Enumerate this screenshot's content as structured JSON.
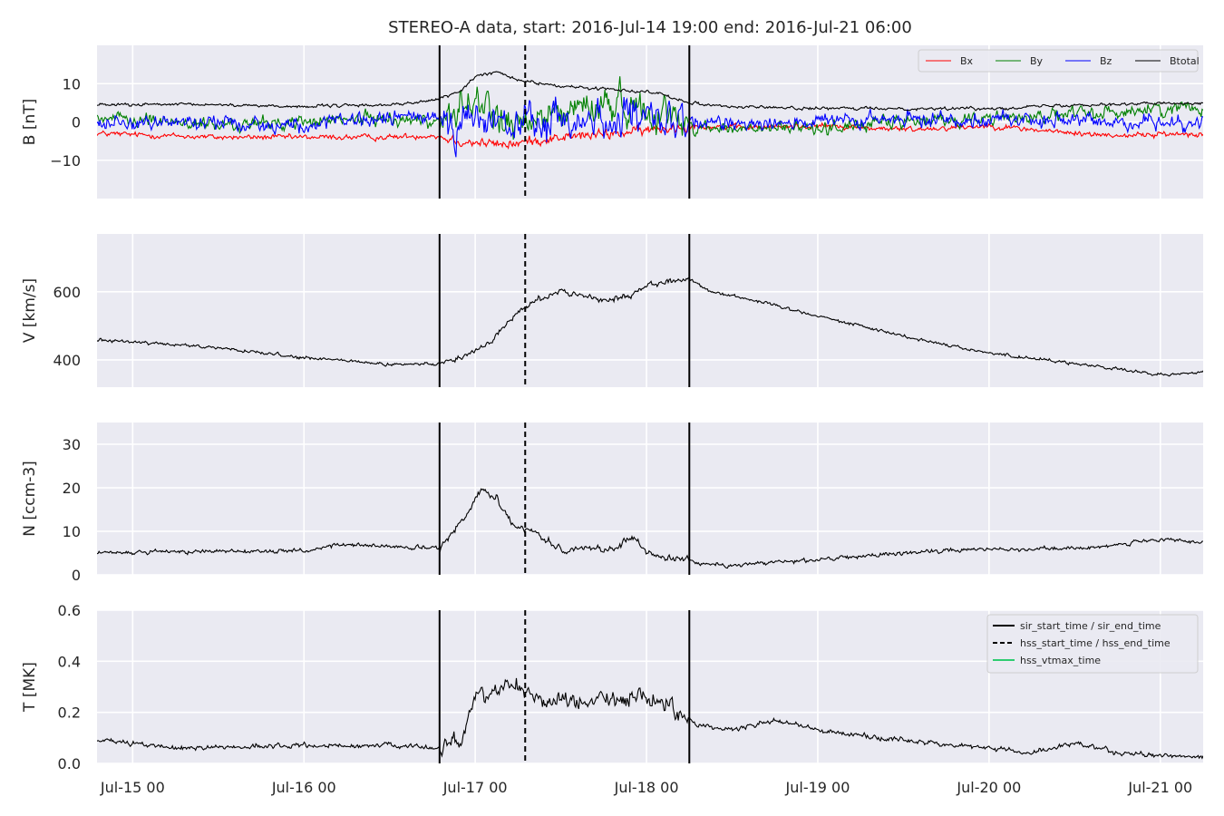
{
  "figure": {
    "title": "STEREO-A data, start: 2016-Jul-14 19:00  end: 2016-Jul-21 06:00"
  },
  "chart_data": {
    "type": "line",
    "x_axis": {
      "type": "time",
      "start": "2016-07-14T19:00",
      "end": "2016-07-21T06:00",
      "ticks": [
        {
          "time": "2016-07-15T00:00",
          "label": "Jul-15 00"
        },
        {
          "time": "2016-07-16T00:00",
          "label": "Jul-16 00"
        },
        {
          "time": "2016-07-17T00:00",
          "label": "Jul-17 00"
        },
        {
          "time": "2016-07-18T00:00",
          "label": "Jul-18 00"
        },
        {
          "time": "2016-07-19T00:00",
          "label": "Jul-19 00"
        },
        {
          "time": "2016-07-20T00:00",
          "label": "Jul-20 00"
        },
        {
          "time": "2016-07-21T00:00",
          "label": "Jul-21 00"
        }
      ]
    },
    "event_markers": [
      {
        "time": "2016-07-16T19:00",
        "style": "solid",
        "color": "#000000"
      },
      {
        "time": "2016-07-17T07:00",
        "style": "dashed",
        "color": "#000000"
      },
      {
        "time": "2016-07-18T06:00",
        "style": "solid",
        "color": "#000000"
      }
    ],
    "panels": [
      {
        "ylabel": "B [nT]",
        "ylim": [
          -20,
          20
        ],
        "yticks": [
          {
            "value": -10,
            "label": "−10"
          },
          {
            "value": 0,
            "label": "0"
          },
          {
            "value": 10,
            "label": "10"
          }
        ],
        "legend": {
          "placement": "top-right",
          "layout": "row",
          "entries": [
            {
              "label": "Bx",
              "color": "#ff0000",
              "style": "solid"
            },
            {
              "label": "By",
              "color": "#008000",
              "style": "solid"
            },
            {
              "label": "Bz",
              "color": "#0000ff",
              "style": "solid"
            },
            {
              "label": "Btotal",
              "color": "#000000",
              "style": "solid"
            }
          ]
        },
        "series": [
          {
            "name": "Bx",
            "color": "#ff0000",
            "noise": 0.9,
            "points": [
              [
                "2016-07-14T19:00",
                -3
              ],
              [
                "2016-07-15T03:00",
                -3.5
              ],
              [
                "2016-07-15T12:00",
                -4
              ],
              [
                "2016-07-16T00:00",
                -4
              ],
              [
                "2016-07-16T12:00",
                -4
              ],
              [
                "2016-07-16T18:00",
                -3.5
              ],
              [
                "2016-07-16T22:00",
                -5
              ],
              [
                "2016-07-17T04:00",
                -6
              ],
              [
                "2016-07-17T08:00",
                -5
              ],
              [
                "2016-07-17T12:00",
                -4
              ],
              [
                "2016-07-17T20:00",
                -3
              ],
              [
                "2016-07-18T06:00",
                -1
              ],
              [
                "2016-07-18T12:00",
                -1.5
              ],
              [
                "2016-07-19T00:00",
                -1
              ],
              [
                "2016-07-19T12:00",
                -2
              ],
              [
                "2016-07-20T00:00",
                -1
              ],
              [
                "2016-07-20T06:00",
                -2
              ],
              [
                "2016-07-20T12:00",
                -3
              ],
              [
                "2016-07-20T18:00",
                -3.5
              ],
              [
                "2016-07-21T06:00",
                -3
              ]
            ]
          },
          {
            "name": "By",
            "color": "#008000",
            "noise": 2.2,
            "points": [
              [
                "2016-07-14T19:00",
                1
              ],
              [
                "2016-07-15T06:00",
                0
              ],
              [
                "2016-07-15T12:00",
                -1
              ],
              [
                "2016-07-16T00:00",
                0
              ],
              [
                "2016-07-16T12:00",
                1
              ],
              [
                "2016-07-16T18:00",
                0
              ],
              [
                "2016-07-17T00:00",
                5
              ],
              [
                "2016-07-17T06:00",
                -2
              ],
              [
                "2016-07-17T12:00",
                3
              ],
              [
                "2016-07-17T20:00",
                5
              ],
              [
                "2016-07-18T03:00",
                2
              ],
              [
                "2016-07-18T06:00",
                -1
              ],
              [
                "2016-07-18T12:00",
                -2
              ],
              [
                "2016-07-19T00:00",
                -1.5
              ],
              [
                "2016-07-19T12:00",
                0
              ],
              [
                "2016-07-20T00:00",
                1
              ],
              [
                "2016-07-20T12:00",
                2
              ],
              [
                "2016-07-21T06:00",
                4
              ]
            ]
          },
          {
            "name": "Bz",
            "color": "#0000ff",
            "noise": 2.5,
            "points": [
              [
                "2016-07-14T19:00",
                0
              ],
              [
                "2016-07-15T12:00",
                0
              ],
              [
                "2016-07-16T00:00",
                -1
              ],
              [
                "2016-07-16T12:00",
                1
              ],
              [
                "2016-07-16T18:00",
                1.5
              ],
              [
                "2016-07-17T00:00",
                0
              ],
              [
                "2016-07-17T06:00",
                -1
              ],
              [
                "2016-07-17T12:00",
                0
              ],
              [
                "2016-07-17T20:00",
                1
              ],
              [
                "2016-07-18T06:00",
                -1
              ],
              [
                "2016-07-18T12:00",
                0
              ],
              [
                "2016-07-19T00:00",
                0
              ],
              [
                "2016-07-20T00:00",
                1
              ],
              [
                "2016-07-20T12:00",
                0
              ],
              [
                "2016-07-21T06:00",
                0
              ]
            ]
          },
          {
            "name": "Btotal",
            "color": "#000000",
            "noise": 0.5,
            "points": [
              [
                "2016-07-14T19:00",
                4.5
              ],
              [
                "2016-07-15T12:00",
                4.5
              ],
              [
                "2016-07-16T00:00",
                4
              ],
              [
                "2016-07-16T12:00",
                4.5
              ],
              [
                "2016-07-16T18:00",
                5.5
              ],
              [
                "2016-07-16T22:00",
                8
              ],
              [
                "2016-07-17T00:00",
                12
              ],
              [
                "2016-07-17T03:00",
                13
              ],
              [
                "2016-07-17T06:00",
                11
              ],
              [
                "2016-07-17T09:00",
                10
              ],
              [
                "2016-07-17T14:00",
                9
              ],
              [
                "2016-07-17T20:00",
                8.5
              ],
              [
                "2016-07-18T02:00",
                7.5
              ],
              [
                "2016-07-18T06:00",
                5
              ],
              [
                "2016-07-18T12:00",
                4
              ],
              [
                "2016-07-19T00:00",
                3.5
              ],
              [
                "2016-07-19T12:00",
                3.5
              ],
              [
                "2016-07-20T00:00",
                3.5
              ],
              [
                "2016-07-20T12:00",
                4.5
              ],
              [
                "2016-07-21T06:00",
                5
              ]
            ]
          }
        ]
      },
      {
        "ylabel": "V [km/s]",
        "ylim": [
          320,
          770
        ],
        "yticks": [
          {
            "value": 400,
            "label": "400"
          },
          {
            "value": 600,
            "label": "600"
          }
        ],
        "series": [
          {
            "name": "V",
            "color": "#000000",
            "noise": 6,
            "points": [
              [
                "2016-07-14T19:00",
                460
              ],
              [
                "2016-07-15T12:00",
                435
              ],
              [
                "2016-07-16T00:00",
                405
              ],
              [
                "2016-07-16T06:00",
                398
              ],
              [
                "2016-07-16T12:00",
                385
              ],
              [
                "2016-07-16T19:00",
                390
              ],
              [
                "2016-07-16T22:00",
                405
              ],
              [
                "2016-07-17T02:00",
                450
              ],
              [
                "2016-07-17T06:00",
                540
              ],
              [
                "2016-07-17T09:00",
                580
              ],
              [
                "2016-07-17T12:00",
                605
              ],
              [
                "2016-07-17T18:00",
                575
              ],
              [
                "2016-07-17T22:00",
                590
              ],
              [
                "2016-07-18T00:00",
                620
              ],
              [
                "2016-07-18T06:00",
                640
              ],
              [
                "2016-07-18T09:00",
                600
              ],
              [
                "2016-07-18T12:00",
                590
              ],
              [
                "2016-07-19T00:00",
                530
              ],
              [
                "2016-07-19T12:00",
                470
              ],
              [
                "2016-07-20T00:00",
                420
              ],
              [
                "2016-07-20T12:00",
                390
              ],
              [
                "2016-07-21T00:00",
                355
              ],
              [
                "2016-07-21T06:00",
                365
              ]
            ]
          }
        ]
      },
      {
        "ylabel": "N [ccm-3]",
        "ylim": [
          0,
          35
        ],
        "yticks": [
          {
            "value": 0,
            "label": "0"
          },
          {
            "value": 10,
            "label": "10"
          },
          {
            "value": 20,
            "label": "20"
          },
          {
            "value": 30,
            "label": "30"
          }
        ],
        "series": [
          {
            "name": "N",
            "color": "#000000",
            "noise": 0.6,
            "points": [
              [
                "2016-07-14T19:00",
                5
              ],
              [
                "2016-07-15T12:00",
                5.5
              ],
              [
                "2016-07-16T00:00",
                5.5
              ],
              [
                "2016-07-16T06:00",
                7
              ],
              [
                "2016-07-16T12:00",
                6.5
              ],
              [
                "2016-07-16T19:00",
                6
              ],
              [
                "2016-07-16T22:00",
                12
              ],
              [
                "2016-07-17T01:00",
                20
              ],
              [
                "2016-07-17T03:00",
                18
              ],
              [
                "2016-07-17T05:00",
                12
              ],
              [
                "2016-07-17T08:00",
                10
              ],
              [
                "2016-07-17T12:00",
                6
              ],
              [
                "2016-07-17T20:00",
                6
              ],
              [
                "2016-07-17T22:00",
                9
              ],
              [
                "2016-07-18T00:00",
                5
              ],
              [
                "2016-07-18T06:00",
                3
              ],
              [
                "2016-07-18T12:00",
                2
              ],
              [
                "2016-07-18T18:00",
                3
              ],
              [
                "2016-07-19T00:00",
                3.5
              ],
              [
                "2016-07-19T12:00",
                5
              ],
              [
                "2016-07-20T00:00",
                6
              ],
              [
                "2016-07-20T12:00",
                6
              ],
              [
                "2016-07-21T00:00",
                8
              ],
              [
                "2016-07-21T06:00",
                7.5
              ]
            ]
          }
        ]
      },
      {
        "ylabel": "T [MK]",
        "ylim": [
          0,
          0.6
        ],
        "yticks": [
          {
            "value": 0,
            "label": "0.0"
          },
          {
            "value": 0.2,
            "label": "0.2"
          },
          {
            "value": 0.4,
            "label": "0.4"
          },
          {
            "value": 0.6,
            "label": "0.6"
          }
        ],
        "legend": {
          "placement": "top-right",
          "layout": "column",
          "entries": [
            {
              "label": "sir_start_time / sir_end_time",
              "color": "#000000",
              "style": "solid"
            },
            {
              "label": "hss_start_time / hss_end_time",
              "color": "#000000",
              "style": "dashed"
            },
            {
              "label": "hss_vtmax_time",
              "color": "#2ecc71",
              "style": "solid"
            }
          ]
        },
        "series": [
          {
            "name": "T",
            "color": "#000000",
            "noise": 0.012,
            "points": [
              [
                "2016-07-14T19:00",
                0.09
              ],
              [
                "2016-07-15T06:00",
                0.06
              ],
              [
                "2016-07-16T00:00",
                0.07
              ],
              [
                "2016-07-16T12:00",
                0.07
              ],
              [
                "2016-07-16T19:00",
                0.06
              ],
              [
                "2016-07-16T22:00",
                0.1
              ],
              [
                "2016-07-17T00:00",
                0.26
              ],
              [
                "2016-07-17T06:00",
                0.32
              ],
              [
                "2016-07-17T08:00",
                0.26
              ],
              [
                "2016-07-17T14:00",
                0.24
              ],
              [
                "2016-07-17T20:00",
                0.26
              ],
              [
                "2016-07-18T03:00",
                0.24
              ],
              [
                "2016-07-18T06:00",
                0.16
              ],
              [
                "2016-07-18T12:00",
                0.13
              ],
              [
                "2016-07-18T18:00",
                0.17
              ],
              [
                "2016-07-19T00:00",
                0.13
              ],
              [
                "2016-07-19T12:00",
                0.09
              ],
              [
                "2016-07-20T00:00",
                0.06
              ],
              [
                "2016-07-20T06:00",
                0.04
              ],
              [
                "2016-07-20T12:00",
                0.08
              ],
              [
                "2016-07-20T18:00",
                0.04
              ],
              [
                "2016-07-21T06:00",
                0.025
              ]
            ]
          }
        ]
      }
    ]
  }
}
